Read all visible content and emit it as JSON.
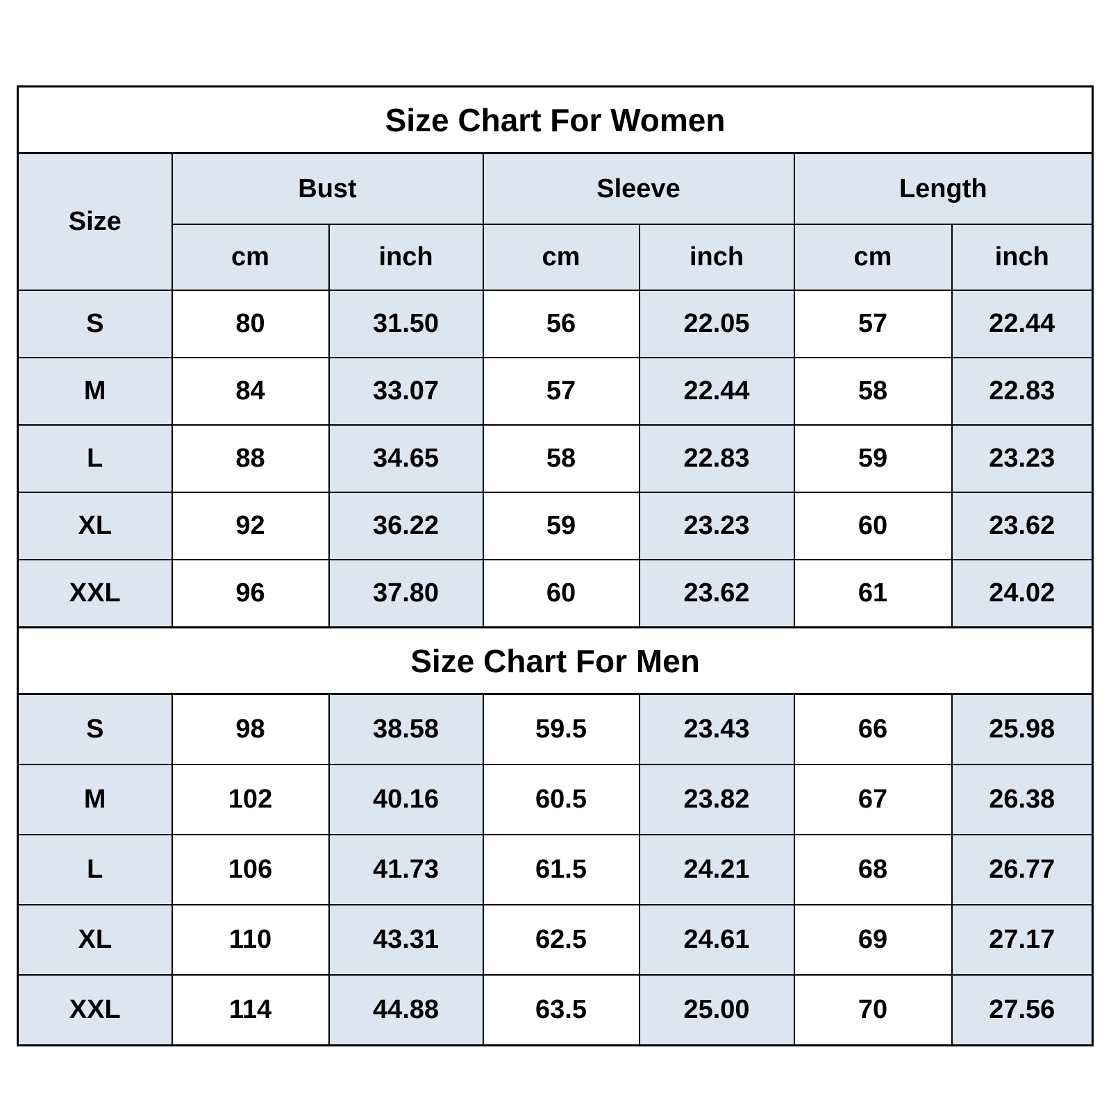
{
  "colors": {
    "header_fill": "#dce6f1",
    "alt_cell_fill": "#dce6f1",
    "cell_fill": "#ffffff",
    "border": "#000000",
    "text": "#000000"
  },
  "chart_data": [
    {
      "type": "table",
      "title": "Size Chart For Women",
      "size_header": "Size",
      "column_groups": [
        {
          "label": "Bust"
        },
        {
          "label": "Sleeve"
        },
        {
          "label": "Length"
        }
      ],
      "sub_headers": [
        "cm",
        "inch",
        "cm",
        "inch",
        "cm",
        "inch"
      ],
      "rows": [
        {
          "size": "S",
          "values": [
            "80",
            "31.50",
            "56",
            "22.05",
            "57",
            "22.44"
          ]
        },
        {
          "size": "M",
          "values": [
            "84",
            "33.07",
            "57",
            "22.44",
            "58",
            "22.83"
          ]
        },
        {
          "size": "L",
          "values": [
            "88",
            "34.65",
            "58",
            "22.83",
            "59",
            "23.23"
          ]
        },
        {
          "size": "XL",
          "values": [
            "92",
            "36.22",
            "59",
            "23.23",
            "60",
            "23.62"
          ]
        },
        {
          "size": "XXL",
          "values": [
            "96",
            "37.80",
            "60",
            "23.62",
            "61",
            "24.02"
          ]
        }
      ]
    },
    {
      "type": "table",
      "title": "Size Chart For Men",
      "rows": [
        {
          "size": "S",
          "values": [
            "98",
            "38.58",
            "59.5",
            "23.43",
            "66",
            "25.98"
          ]
        },
        {
          "size": "M",
          "values": [
            "102",
            "40.16",
            "60.5",
            "23.82",
            "67",
            "26.38"
          ]
        },
        {
          "size": "L",
          "values": [
            "106",
            "41.73",
            "61.5",
            "24.21",
            "68",
            "26.77"
          ]
        },
        {
          "size": "XL",
          "values": [
            "110",
            "43.31",
            "62.5",
            "24.61",
            "69",
            "27.17"
          ]
        },
        {
          "size": "XXL",
          "values": [
            "114",
            "44.88",
            "63.5",
            "25.00",
            "70",
            "27.56"
          ]
        }
      ]
    }
  ]
}
